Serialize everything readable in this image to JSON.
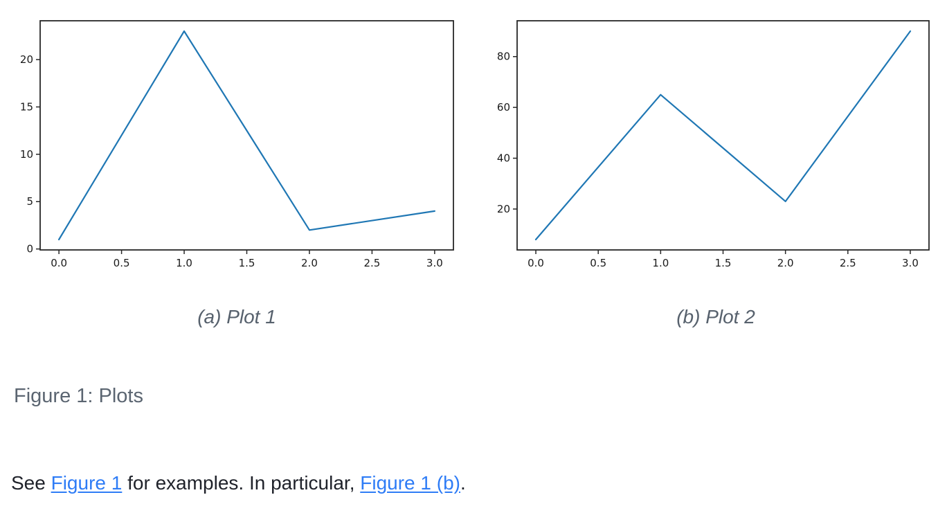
{
  "colors": {
    "link": "#2e7cf6",
    "body_text": "#1f222a",
    "caption": "#57616d",
    "figure_caption": "#5b6571",
    "axis": "#262626",
    "tick_label": "#1a1a1a"
  },
  "figure": {
    "caption": "Figure 1: Plots"
  },
  "paragraph": {
    "segments": [
      {
        "text": "See ",
        "link": false
      },
      {
        "text": "Figure 1",
        "link": true
      },
      {
        "text": " for examples. In particular, ",
        "link": false
      },
      {
        "text": "Figure 1 (b)",
        "link": true
      },
      {
        "text": ".",
        "link": false
      }
    ]
  },
  "chart_data": [
    {
      "type": "line",
      "caption": "(a) Plot 1",
      "title": "",
      "xlabel": "",
      "ylabel": "",
      "x": [
        0,
        1,
        2,
        3
      ],
      "y": [
        1,
        23,
        2,
        4
      ],
      "xtick_values": [
        0,
        0.5,
        1,
        1.5,
        2,
        2.5,
        3
      ],
      "xtick_labels": [
        "0.0",
        "0.5",
        "1.0",
        "1.5",
        "2.0",
        "2.5",
        "3.0"
      ],
      "ytick_values": [
        0,
        5,
        10,
        15,
        20
      ],
      "ytick_labels": [
        "0",
        "5",
        "10",
        "15",
        "20"
      ],
      "xlim": [
        -0.15,
        3.15
      ],
      "ylim": [
        -0.1,
        24.1
      ],
      "margin_fraction": 0.05,
      "grid": false,
      "legend": "none",
      "line_color": "#1f77b4"
    },
    {
      "type": "line",
      "caption": "(b) Plot 2",
      "title": "",
      "xlabel": "",
      "ylabel": "",
      "x": [
        0,
        1,
        2,
        3
      ],
      "y": [
        8,
        65,
        23,
        90
      ],
      "xtick_values": [
        0,
        0.5,
        1,
        1.5,
        2,
        2.5,
        3
      ],
      "xtick_labels": [
        "0.0",
        "0.5",
        "1.0",
        "1.5",
        "2.0",
        "2.5",
        "3.0"
      ],
      "ytick_values": [
        20,
        40,
        60,
        80
      ],
      "ytick_labels": [
        "20",
        "40",
        "60",
        "80"
      ],
      "xlim": [
        -0.15,
        3.15
      ],
      "ylim": [
        3.9,
        94.1
      ],
      "margin_fraction": 0.05,
      "grid": false,
      "legend": "none",
      "line_color": "#1f77b4"
    }
  ]
}
